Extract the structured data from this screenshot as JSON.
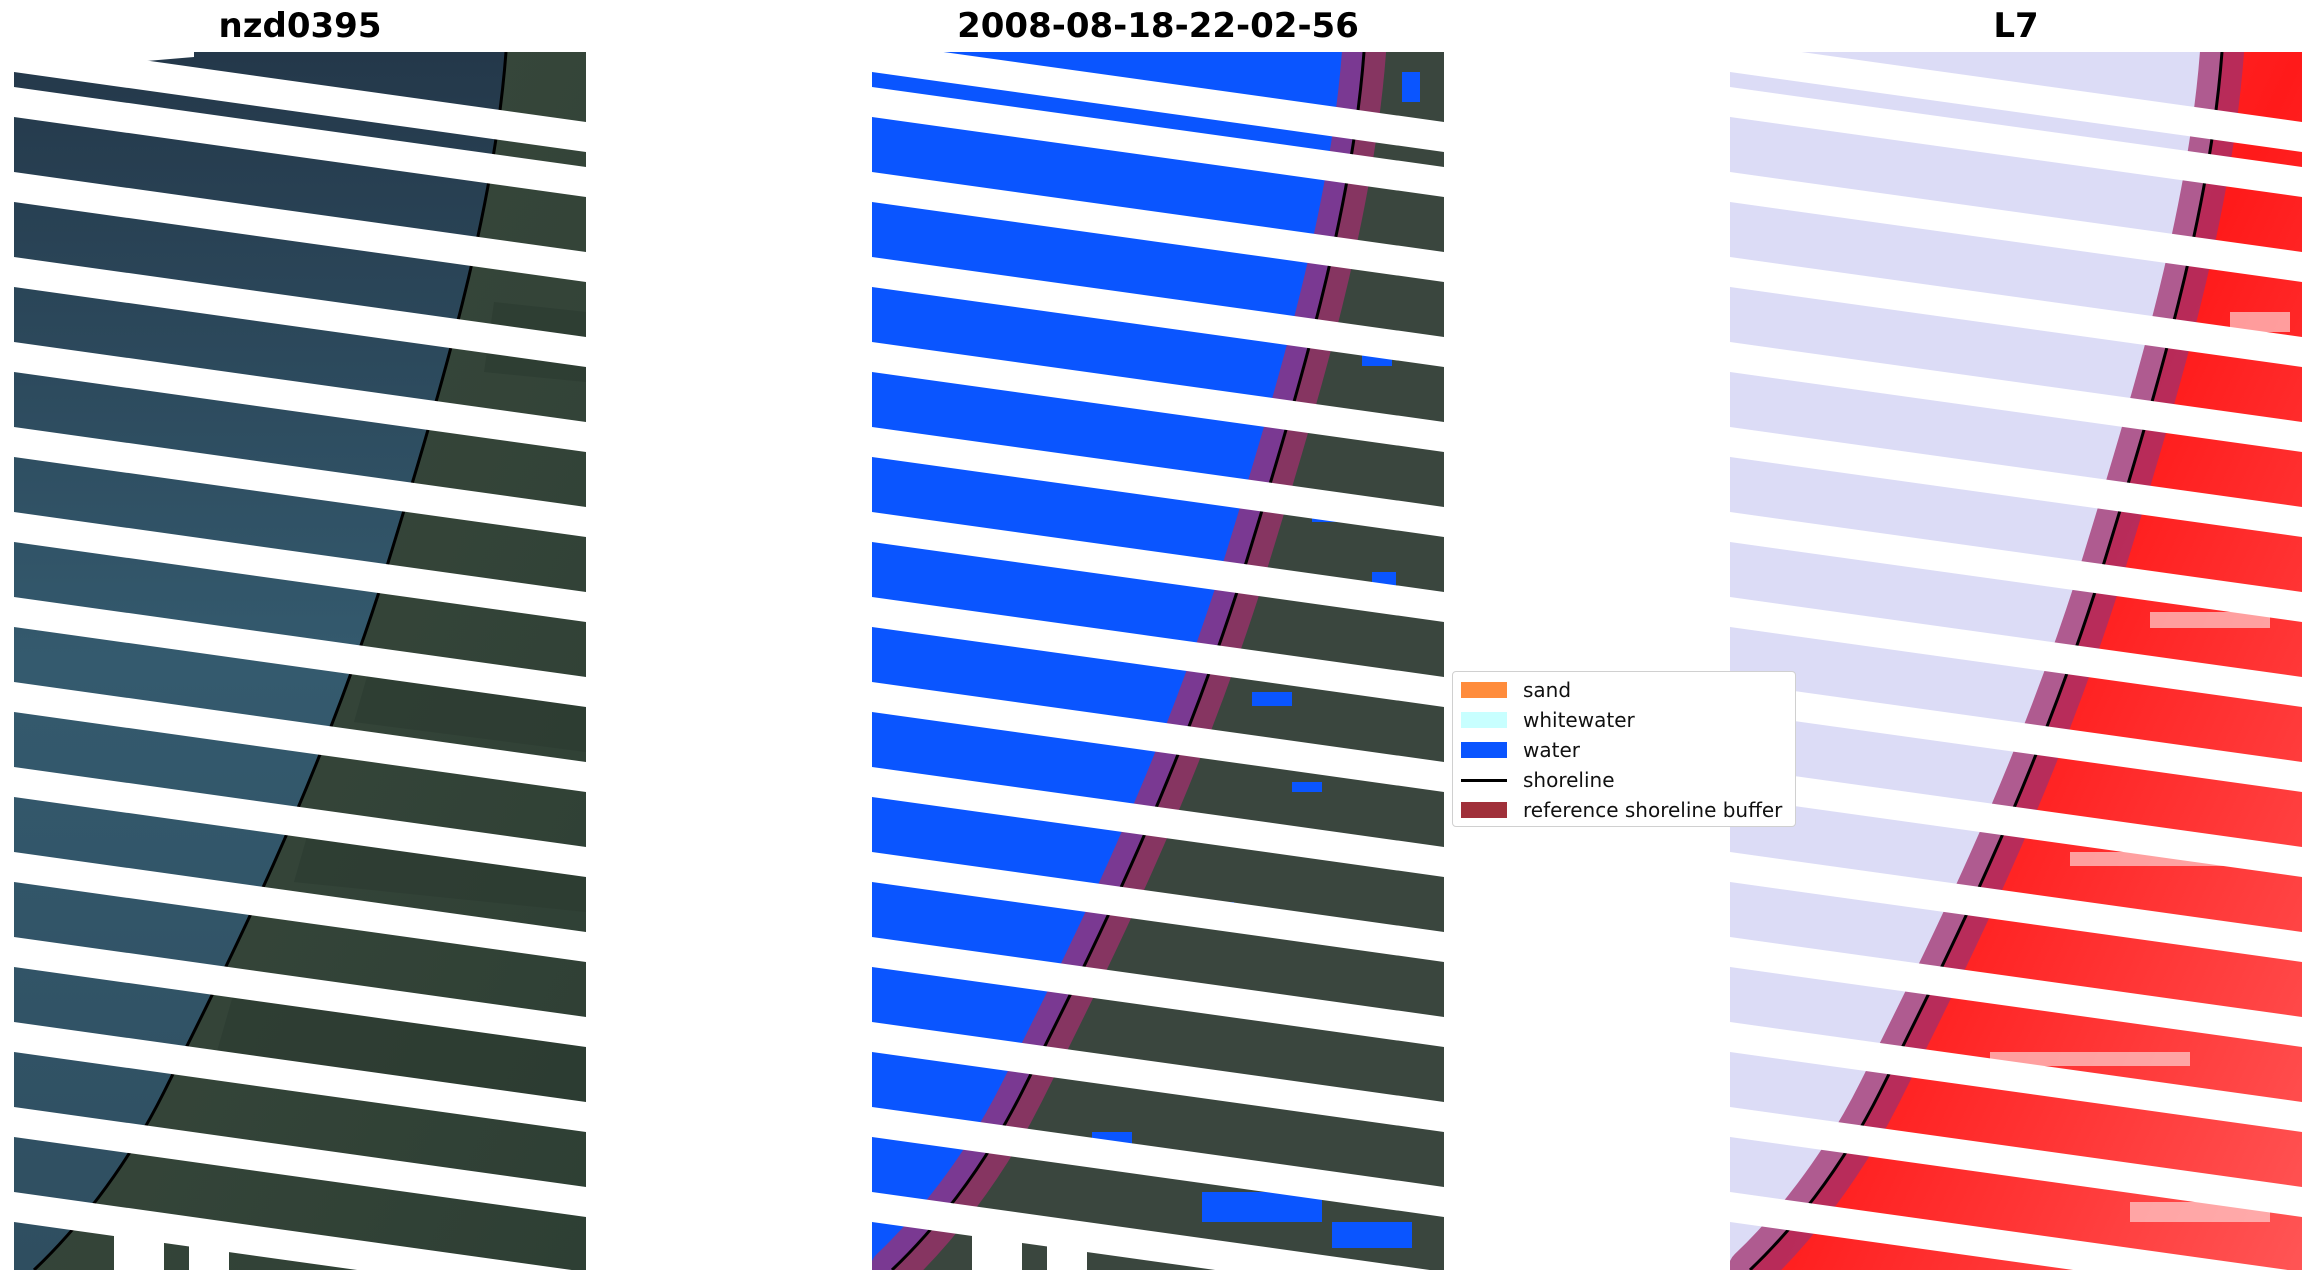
{
  "panels": [
    {
      "title": "nzd0395"
    },
    {
      "title": "2008-08-18-22-02-56"
    },
    {
      "title": "L7"
    }
  ],
  "legend": {
    "items": [
      {
        "label": "sand",
        "color": "#ff8c3c"
      },
      {
        "label": "whitewater",
        "color": "#c8ffff"
      },
      {
        "label": "water",
        "color": "#0a55ff"
      },
      {
        "label": "shoreline",
        "color": "#000000"
      },
      {
        "label": "reference shoreline buffer",
        "color": "#a0303a"
      }
    ]
  },
  "colors": {
    "ocean": "#2d4a5e",
    "land": "#38473e",
    "water_class": "#0a55ff",
    "buffer": "#a0306e",
    "land_index": "#ff2a2a",
    "water_index": "#dcdcf6",
    "scan_gap": "#ffffff"
  }
}
